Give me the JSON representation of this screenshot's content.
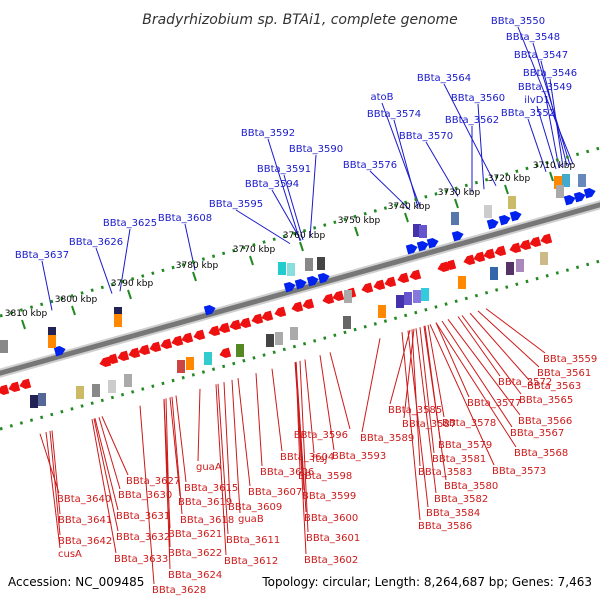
{
  "title": "Bradyrhizobium sp. BTAi1, complete genome",
  "footer": {
    "accession": "Accession: NC_009485",
    "topology": "Topology: circular; Length: 8,264,687 bp; Genes: 7,463"
  },
  "colors": {
    "forward_label": "#1a1acc",
    "reverse_label": "#cc1a1a",
    "forward_arrow": "#0022ee",
    "reverse_arrow": "#ee1111",
    "backbone": "#777777",
    "tick": "#228822"
  },
  "ticks": [
    "3710 kbp",
    "3720 kbp",
    "3730 kbp",
    "3740 kbp",
    "3750 kbp",
    "3760 kbp",
    "3770 kbp",
    "3780 kbp",
    "3790 kbp",
    "3800 kbp",
    "3810 kbp"
  ],
  "forward_genes": [
    "BBta_3550",
    "BBta_3548",
    "BBta_3547",
    "BBta_3546",
    "BBta_3549",
    "ilvD1",
    "BBta_3552",
    "BBta_3564",
    "BBta_3560",
    "atoB",
    "BBta_3574",
    "BBta_3562",
    "BBta_3570",
    "BBta_3576",
    "BBta_3592",
    "BBta_3590",
    "BBta_3591",
    "BBta_3594",
    "BBta_3595",
    "BBta_3608",
    "BBta_3625",
    "BBta_3626",
    "BBta_3637"
  ],
  "reverse_genes": [
    "BBta_3559",
    "BBta_3561",
    "BBta_3563",
    "BBta_3572",
    "BBta_3565",
    "BBta_3577",
    "BBta_3566",
    "BBta_3585",
    "BBta_3587",
    "BBta_3578",
    "BBta_3567",
    "BBta_3589",
    "BBta_3579",
    "BBta_3596",
    "BBta_3568",
    "BBta_3581",
    "BBta_3573",
    "BBta_3593",
    "ftsJ",
    "BBta_3604",
    "BBta_3583",
    "BBta_3598",
    "guaA",
    "BBta_3606",
    "BBta_3580",
    "BBta_3627",
    "BBta_3599",
    "BBta_3615",
    "BBta_3607",
    "BBta_3582",
    "BBta_3640",
    "BBta_3630",
    "BBta_3619",
    "BBta_3609",
    "BBta_3584",
    "BBta_3600",
    "BBta_3631",
    "BBta_3618",
    "guaB",
    "BBta_3586",
    "BBta_3641",
    "BBta_3621",
    "BBta_3601",
    "BBta_3632",
    "BBta_3611",
    "BBta_3642",
    "cusA",
    "BBta_3622",
    "BBta_3612",
    "BBta_3602",
    "BBta_3633",
    "BBta_3624",
    "BBta_3628"
  ]
}
